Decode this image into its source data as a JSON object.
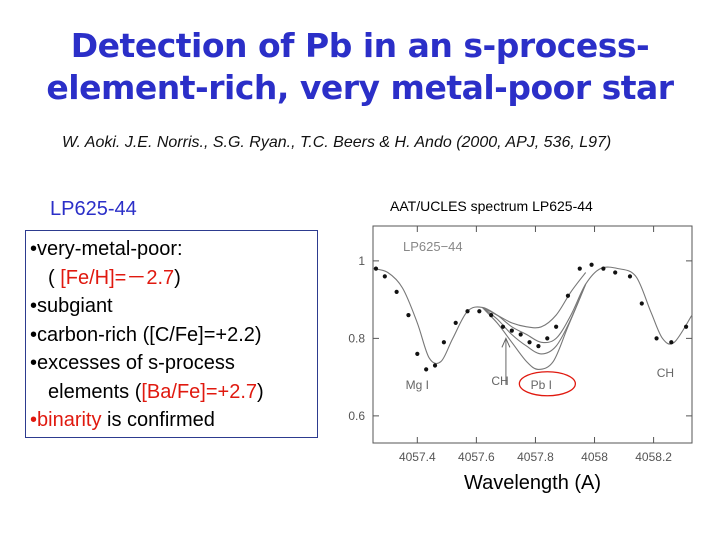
{
  "slide": {
    "title_line1": "Detection of Pb in an s-process-",
    "title_line2": "element-rich, very metal-poor star",
    "citation": "W. Aoki. J.E. Norris., S.G. Ryan., T.C. Beers & H. Ando (2000, APJ, 536, L97)",
    "star_name": "LP625-44",
    "box": {
      "line1": "•very-metal-poor:",
      "line2_open": "( ",
      "line2_red": "[Fe/H]=－2.7",
      "line2_close": ")",
      "line3": "•subgiant",
      "line4": "•carbon-rich ([C/Fe]=+2.2)",
      "line5": "•excesses of s-process",
      "line6_open": "elements (",
      "line6_red": "[Ba/Fe]=+2.7",
      "line6_close": ")",
      "line7_red": "•binarity",
      "line7_rest": " is confirmed"
    },
    "colors": {
      "title": "#2b2fc8",
      "highlight": "#e0190f",
      "box_border": "#2d3b8f"
    }
  },
  "chart_data": {
    "type": "line",
    "title": "AAT/UCLES spectrum LP625-44",
    "xlabel": "Wavelength (A)",
    "ylabel": "",
    "xlim": [
      4057.25,
      4058.33
    ],
    "ylim": [
      0.53,
      1.09
    ],
    "xticks": [
      "4057.4",
      "4057.6",
      "4057.8",
      "4058",
      "4058.2"
    ],
    "xtick_values": [
      4057.4,
      4057.6,
      4057.8,
      4058.0,
      4058.2
    ],
    "yticks": [
      "0.6",
      "0.8",
      "1"
    ],
    "ytick_values": [
      0.6,
      0.8,
      1.0
    ],
    "panel_label": "LP625−44",
    "annotations": [
      {
        "text": "Mg I",
        "x": 4057.4,
        "y": 0.67
      },
      {
        "text": "CH",
        "x": 4057.68,
        "y": 0.68
      },
      {
        "text": "Pb I",
        "x": 4057.82,
        "y": 0.67,
        "highlighted": true
      },
      {
        "text": "CH",
        "x": 4058.24,
        "y": 0.7
      }
    ],
    "arrow": {
      "x": 4057.7,
      "y_from": 0.68,
      "y_to": 0.8
    },
    "observed": {
      "x": [
        4057.26,
        4057.29,
        4057.33,
        4057.37,
        4057.4,
        4057.43,
        4057.46,
        4057.49,
        4057.53,
        4057.57,
        4057.61,
        4057.65,
        4057.69,
        4057.72,
        4057.75,
        4057.78,
        4057.81,
        4057.84,
        4057.87,
        4057.91,
        4057.95,
        4057.99,
        4058.03,
        4058.07,
        4058.12,
        4058.16,
        4058.21,
        4058.26,
        4058.31
      ],
      "y": [
        0.98,
        0.96,
        0.92,
        0.86,
        0.76,
        0.72,
        0.73,
        0.79,
        0.84,
        0.87,
        0.87,
        0.86,
        0.83,
        0.82,
        0.81,
        0.79,
        0.78,
        0.8,
        0.83,
        0.91,
        0.98,
        0.99,
        0.98,
        0.97,
        0.96,
        0.89,
        0.8,
        0.79,
        0.83
      ]
    },
    "synthetic": [
      {
        "x": [
          4057.25,
          4057.3,
          4057.35,
          4057.4,
          4057.44,
          4057.48,
          4057.52,
          4057.57,
          4057.62,
          4057.67,
          4057.72,
          4057.77,
          4057.82,
          4057.87,
          4057.92,
          4057.97,
          4058.02,
          4058.08,
          4058.14,
          4058.19,
          4058.23,
          4058.27,
          4058.33
        ],
        "y": [
          0.98,
          0.97,
          0.93,
          0.84,
          0.75,
          0.74,
          0.8,
          0.87,
          0.88,
          0.86,
          0.83,
          0.81,
          0.79,
          0.8,
          0.86,
          0.94,
          0.98,
          0.98,
          0.96,
          0.87,
          0.8,
          0.79,
          0.86
        ]
      },
      {
        "x": [
          4057.62,
          4057.67,
          4057.72,
          4057.77,
          4057.82,
          4057.87,
          4057.92,
          4057.97
        ],
        "y": [
          0.88,
          0.85,
          0.81,
          0.78,
          0.76,
          0.78,
          0.85,
          0.94
        ]
      },
      {
        "x": [
          4057.62,
          4057.67,
          4057.72,
          4057.77,
          4057.81,
          4057.86,
          4057.91,
          4057.97
        ],
        "y": [
          0.88,
          0.84,
          0.79,
          0.74,
          0.72,
          0.74,
          0.83,
          0.94
        ]
      },
      {
        "x": [
          4057.62,
          4057.67,
          4057.72,
          4057.77,
          4057.82,
          4057.87,
          4057.92,
          4057.97
        ],
        "y": [
          0.88,
          0.86,
          0.84,
          0.83,
          0.83,
          0.86,
          0.92,
          0.97
        ]
      }
    ],
    "grid": false,
    "legend": "none",
    "line_color": "#777777",
    "annotation_color": "#666666"
  }
}
